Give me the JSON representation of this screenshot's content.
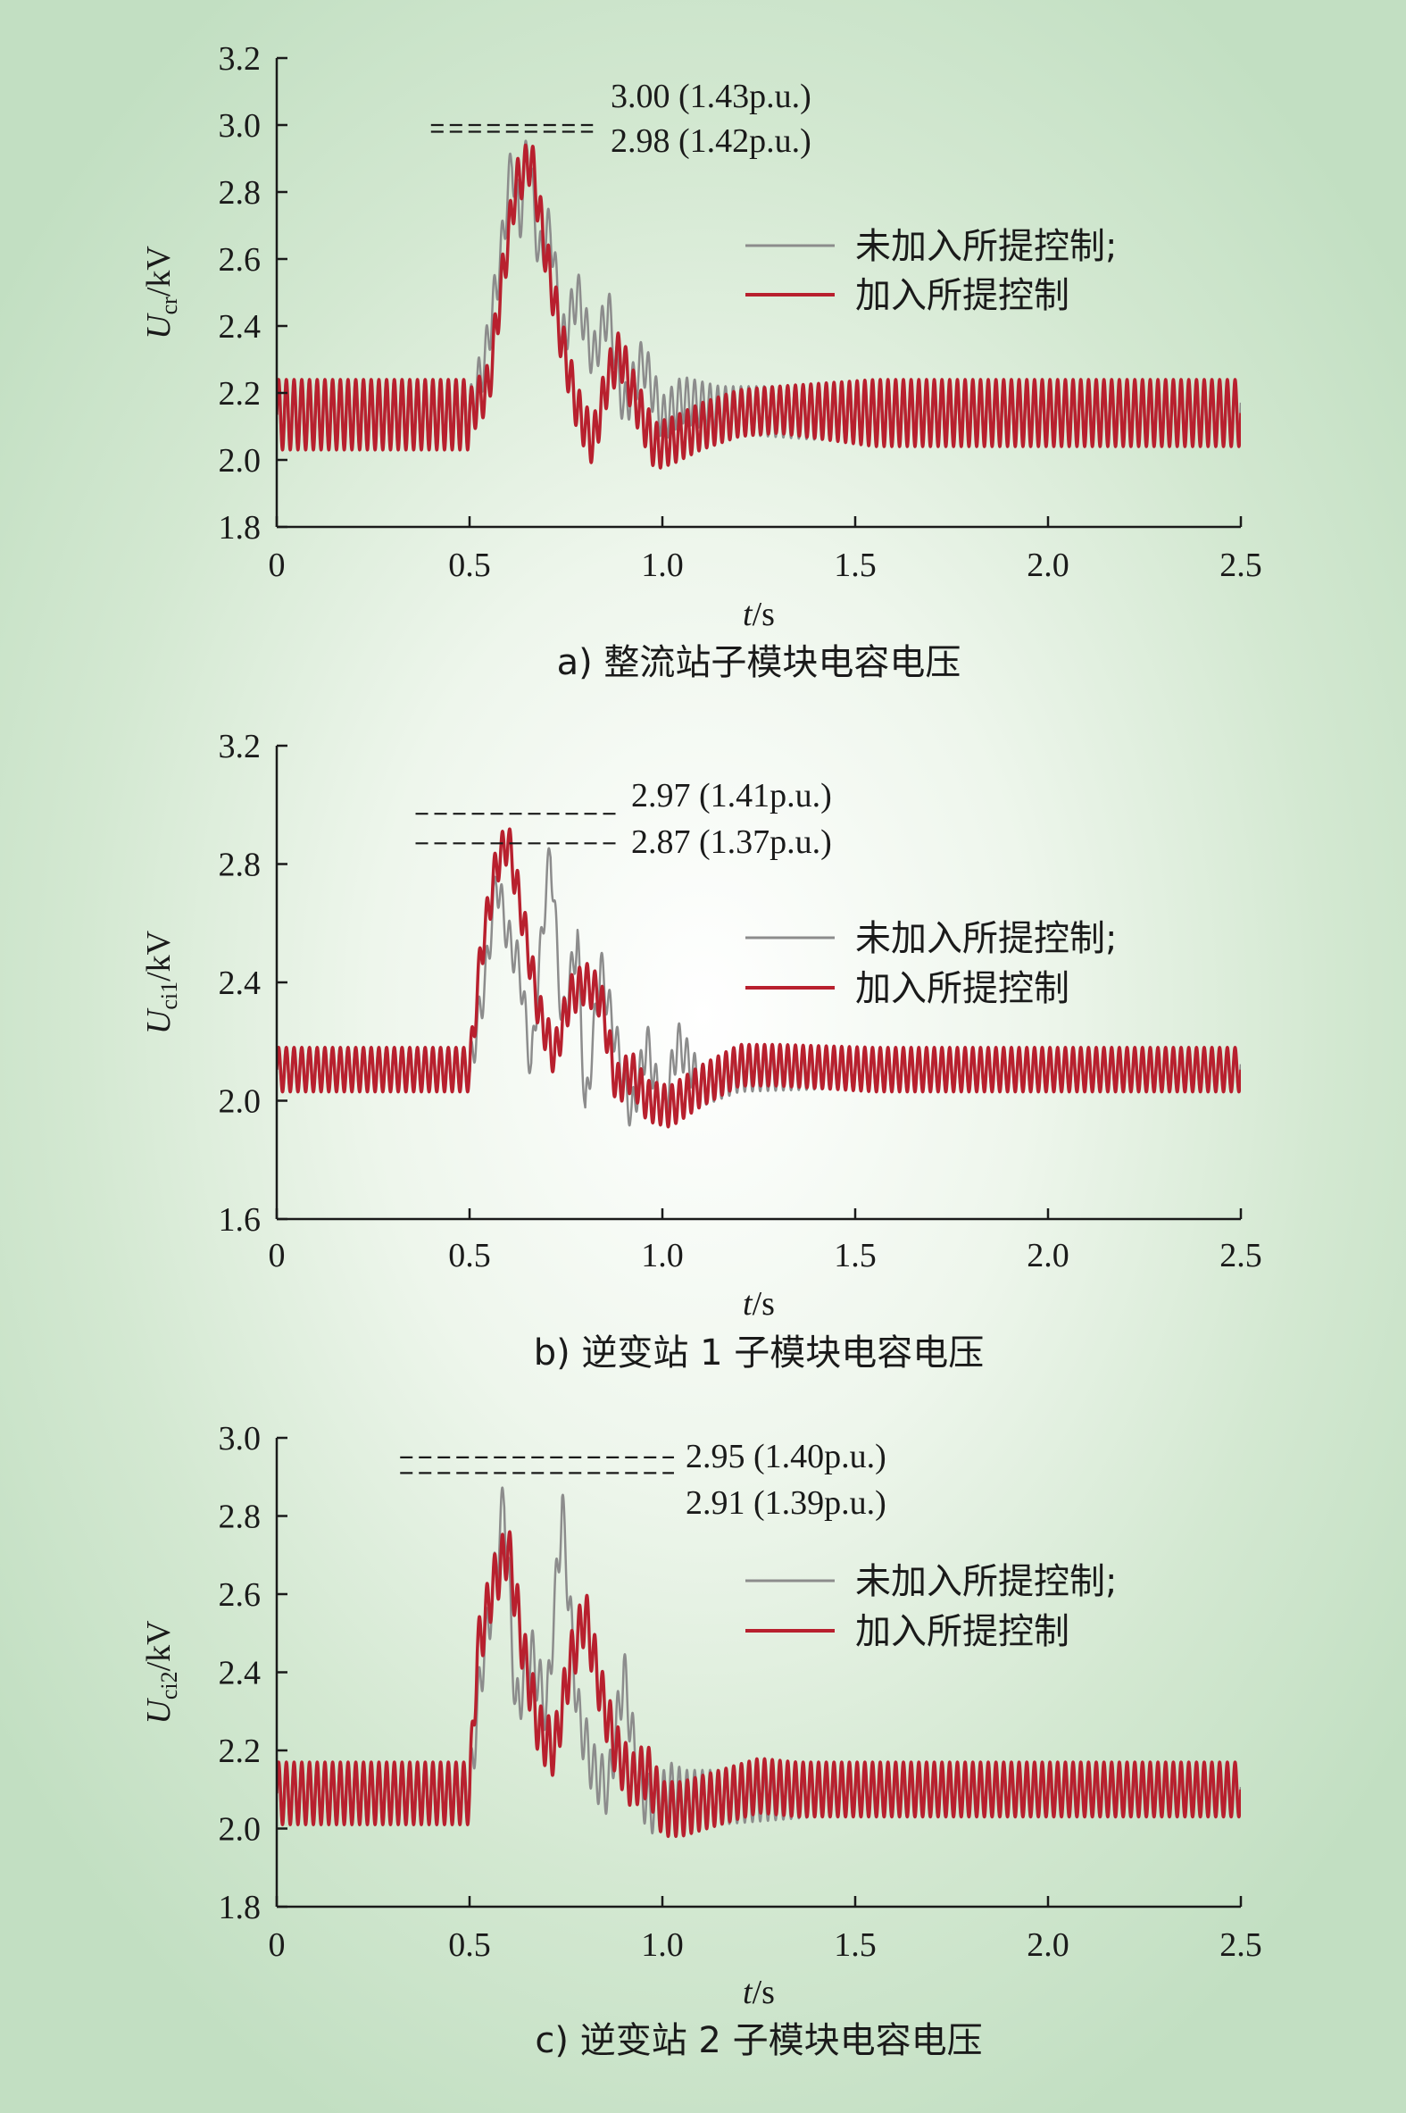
{
  "chart_data": [
    {
      "type": "line",
      "panel": "a",
      "caption": "a) 整流站子模块电容电压",
      "ylabel_main": "U",
      "ylabel_sub": "cr",
      "ylabel_unit": "/kV",
      "xlabel_main": "t",
      "xlabel_unit": "/s",
      "xlim": [
        0,
        2.5
      ],
      "ylim": [
        1.8,
        3.2
      ],
      "x_ticks": [
        "0",
        "0.5",
        "1.0",
        "1.5",
        "2.0",
        "2.5"
      ],
      "y_ticks": [
        "1.8",
        "2.0",
        "2.2",
        "2.4",
        "2.6",
        "2.8",
        "3.0",
        "3.2"
      ],
      "annotations": [
        {
          "text": "3.00 (1.43p.u.)",
          "y": 3.0,
          "line_x": [
            0.4,
            0.82
          ]
        },
        {
          "text": "2.98 (1.42p.u.)",
          "y": 2.98,
          "line_x": [
            0.4,
            0.82
          ]
        }
      ],
      "legend_placement": "right",
      "series": [
        {
          "name": "未加入所提控制;",
          "color": "#8c8c8c",
          "width": 2.5,
          "steady_low": 2.04,
          "steady_high": 2.24,
          "after_low": 2.06,
          "after_high": 2.22,
          "transient": [
            [
              0.5,
              2.14
            ],
            [
              0.54,
              2.3
            ],
            [
              0.58,
              2.6
            ],
            [
              0.61,
              2.9
            ],
            [
              0.63,
              2.7
            ],
            [
              0.65,
              2.95
            ],
            [
              0.68,
              2.6
            ],
            [
              0.71,
              2.7
            ],
            [
              0.74,
              2.35
            ],
            [
              0.78,
              2.5
            ],
            [
              0.82,
              2.3
            ],
            [
              0.86,
              2.45
            ],
            [
              0.9,
              2.15
            ],
            [
              0.95,
              2.3
            ],
            [
              1.0,
              2.12
            ],
            [
              1.05,
              2.18
            ],
            [
              1.15,
              2.15
            ]
          ]
        },
        {
          "name": "加入所提控制",
          "color": "#b8202e",
          "width": 3.5,
          "steady_low": 2.03,
          "steady_high": 2.24,
          "after_low": 2.04,
          "after_high": 2.24,
          "transient": [
            [
              0.5,
              2.14
            ],
            [
              0.55,
              2.22
            ],
            [
              0.58,
              2.5
            ],
            [
              0.62,
              2.82
            ],
            [
              0.66,
              2.9
            ],
            [
              0.7,
              2.6
            ],
            [
              0.74,
              2.35
            ],
            [
              0.78,
              2.15
            ],
            [
              0.82,
              2.05
            ],
            [
              0.86,
              2.25
            ],
            [
              0.89,
              2.32
            ],
            [
              0.93,
              2.18
            ],
            [
              0.98,
              2.04
            ],
            [
              1.03,
              2.06
            ],
            [
              1.1,
              2.1
            ],
            [
              1.2,
              2.14
            ],
            [
              1.3,
              2.15
            ]
          ]
        }
      ]
    },
    {
      "type": "line",
      "panel": "b",
      "caption": "b) 逆变站 1 子模块电容电压",
      "ylabel_main": "U",
      "ylabel_sub": "ci1",
      "ylabel_unit": "/kV",
      "xlabel_main": "t",
      "xlabel_unit": "/s",
      "xlim": [
        0,
        2.5
      ],
      "ylim": [
        1.6,
        3.2
      ],
      "x_ticks": [
        "0",
        "0.5",
        "1.0",
        "1.5",
        "2.0",
        "2.5"
      ],
      "y_ticks": [
        "1.6",
        "2.0",
        "2.4",
        "2.8",
        "3.2"
      ],
      "annotations": [
        {
          "text": "2.97 (1.41p.u.)",
          "y": 2.97,
          "line_x": [
            0.36,
            0.88
          ]
        },
        {
          "text": "2.87 (1.37p.u.)",
          "y": 2.87,
          "line_x": [
            0.36,
            0.88
          ]
        }
      ],
      "legend_placement": "right",
      "series": [
        {
          "name": "未加入所提控制;",
          "color": "#8c8c8c",
          "width": 2.5,
          "steady_low": 2.04,
          "steady_high": 2.18,
          "after_low": 2.04,
          "after_high": 2.16,
          "transient": [
            [
              0.5,
              2.1
            ],
            [
              0.54,
              2.4
            ],
            [
              0.57,
              2.75
            ],
            [
              0.6,
              2.55
            ],
            [
              0.63,
              2.45
            ],
            [
              0.66,
              2.1
            ],
            [
              0.69,
              2.6
            ],
            [
              0.71,
              2.85
            ],
            [
              0.74,
              2.25
            ],
            [
              0.78,
              2.55
            ],
            [
              0.8,
              1.95
            ],
            [
              0.84,
              2.45
            ],
            [
              0.88,
              2.2
            ],
            [
              0.92,
              1.95
            ],
            [
              0.96,
              2.2
            ],
            [
              1.0,
              1.95
            ],
            [
              1.04,
              2.2
            ],
            [
              1.1,
              2.05
            ],
            [
              1.2,
              2.1
            ]
          ]
        },
        {
          "name": "加入所提控制",
          "color": "#b8202e",
          "width": 3.5,
          "steady_low": 2.03,
          "steady_high": 2.18,
          "after_low": 2.03,
          "after_high": 2.18,
          "transient": [
            [
              0.5,
              2.1
            ],
            [
              0.53,
              2.5
            ],
            [
              0.57,
              2.8
            ],
            [
              0.6,
              2.88
            ],
            [
              0.64,
              2.6
            ],
            [
              0.68,
              2.3
            ],
            [
              0.72,
              2.15
            ],
            [
              0.76,
              2.35
            ],
            [
              0.8,
              2.4
            ],
            [
              0.84,
              2.35
            ],
            [
              0.88,
              2.05
            ],
            [
              0.92,
              2.1
            ],
            [
              0.96,
              2.0
            ],
            [
              1.02,
              1.98
            ],
            [
              1.1,
              2.05
            ],
            [
              1.2,
              2.12
            ],
            [
              1.3,
              2.12
            ]
          ]
        }
      ]
    },
    {
      "type": "line",
      "panel": "c",
      "caption": "c) 逆变站 2 子模块电容电压",
      "ylabel_main": "U",
      "ylabel_sub": "ci2",
      "ylabel_unit": "/kV",
      "xlabel_main": "t",
      "xlabel_unit": "/s",
      "xlim": [
        0,
        2.5
      ],
      "ylim": [
        1.8,
        3.0
      ],
      "x_ticks": [
        "0",
        "0.5",
        "1.0",
        "1.5",
        "2.0",
        "2.5"
      ],
      "y_ticks": [
        "1.8",
        "2.0",
        "2.2",
        "2.4",
        "2.6",
        "2.8",
        "3.0"
      ],
      "annotations": [
        {
          "text": "2.95 (1.40p.u.)",
          "y": 2.95,
          "line_x": [
            0.32,
            1.03
          ]
        },
        {
          "text": "2.91 (1.39p.u.)",
          "y": 2.91,
          "line_x": [
            0.32,
            1.03
          ]
        }
      ],
      "legend_placement": "right",
      "series": [
        {
          "name": "未加入所提控制;",
          "color": "#8c8c8c",
          "width": 2.5,
          "steady_low": 2.02,
          "steady_high": 2.16,
          "after_low": 2.03,
          "after_high": 2.14,
          "transient": [
            [
              0.5,
              2.09
            ],
            [
              0.53,
              2.4
            ],
            [
              0.56,
              2.6
            ],
            [
              0.59,
              2.85
            ],
            [
              0.62,
              2.3
            ],
            [
              0.66,
              2.45
            ],
            [
              0.7,
              2.3
            ],
            [
              0.74,
              2.82
            ],
            [
              0.78,
              2.3
            ],
            [
              0.82,
              2.15
            ],
            [
              0.86,
              2.1
            ],
            [
              0.9,
              2.4
            ],
            [
              0.94,
              2.1
            ],
            [
              0.98,
              2.05
            ],
            [
              1.02,
              2.1
            ],
            [
              1.06,
              2.08
            ],
            [
              1.15,
              2.08
            ]
          ]
        },
        {
          "name": "加入所提控制",
          "color": "#b8202e",
          "width": 3.5,
          "steady_low": 2.01,
          "steady_high": 2.17,
          "after_low": 2.03,
          "after_high": 2.17,
          "transient": [
            [
              0.5,
              2.09
            ],
            [
              0.52,
              2.45
            ],
            [
              0.56,
              2.62
            ],
            [
              0.6,
              2.72
            ],
            [
              0.64,
              2.45
            ],
            [
              0.68,
              2.25
            ],
            [
              0.72,
              2.2
            ],
            [
              0.76,
              2.42
            ],
            [
              0.8,
              2.55
            ],
            [
              0.84,
              2.35
            ],
            [
              0.88,
              2.2
            ],
            [
              0.92,
              2.12
            ],
            [
              0.96,
              2.15
            ],
            [
              1.0,
              2.05
            ],
            [
              1.05,
              2.05
            ],
            [
              1.15,
              2.08
            ],
            [
              1.25,
              2.11
            ],
            [
              1.35,
              2.1
            ]
          ]
        }
      ]
    }
  ]
}
